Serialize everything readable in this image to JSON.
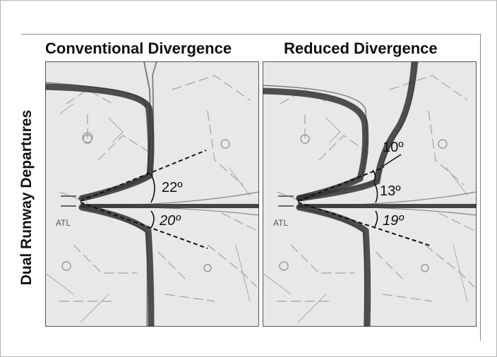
{
  "titles": {
    "left": "Conventional Divergence",
    "right": "Reduced Divergence"
  },
  "row_label": "Dual Runway Departures",
  "airport_label": "ATL",
  "left_panel": {
    "upper_angle": "22º",
    "lower_angle": "20º"
  },
  "right_panel": {
    "top_angle": "10º",
    "upper_angle": "13º",
    "lower_angle": "19º"
  },
  "colors": {
    "map_background": "#e8e8e8",
    "track": "#333333",
    "map_lines": "#a0a0a0"
  }
}
